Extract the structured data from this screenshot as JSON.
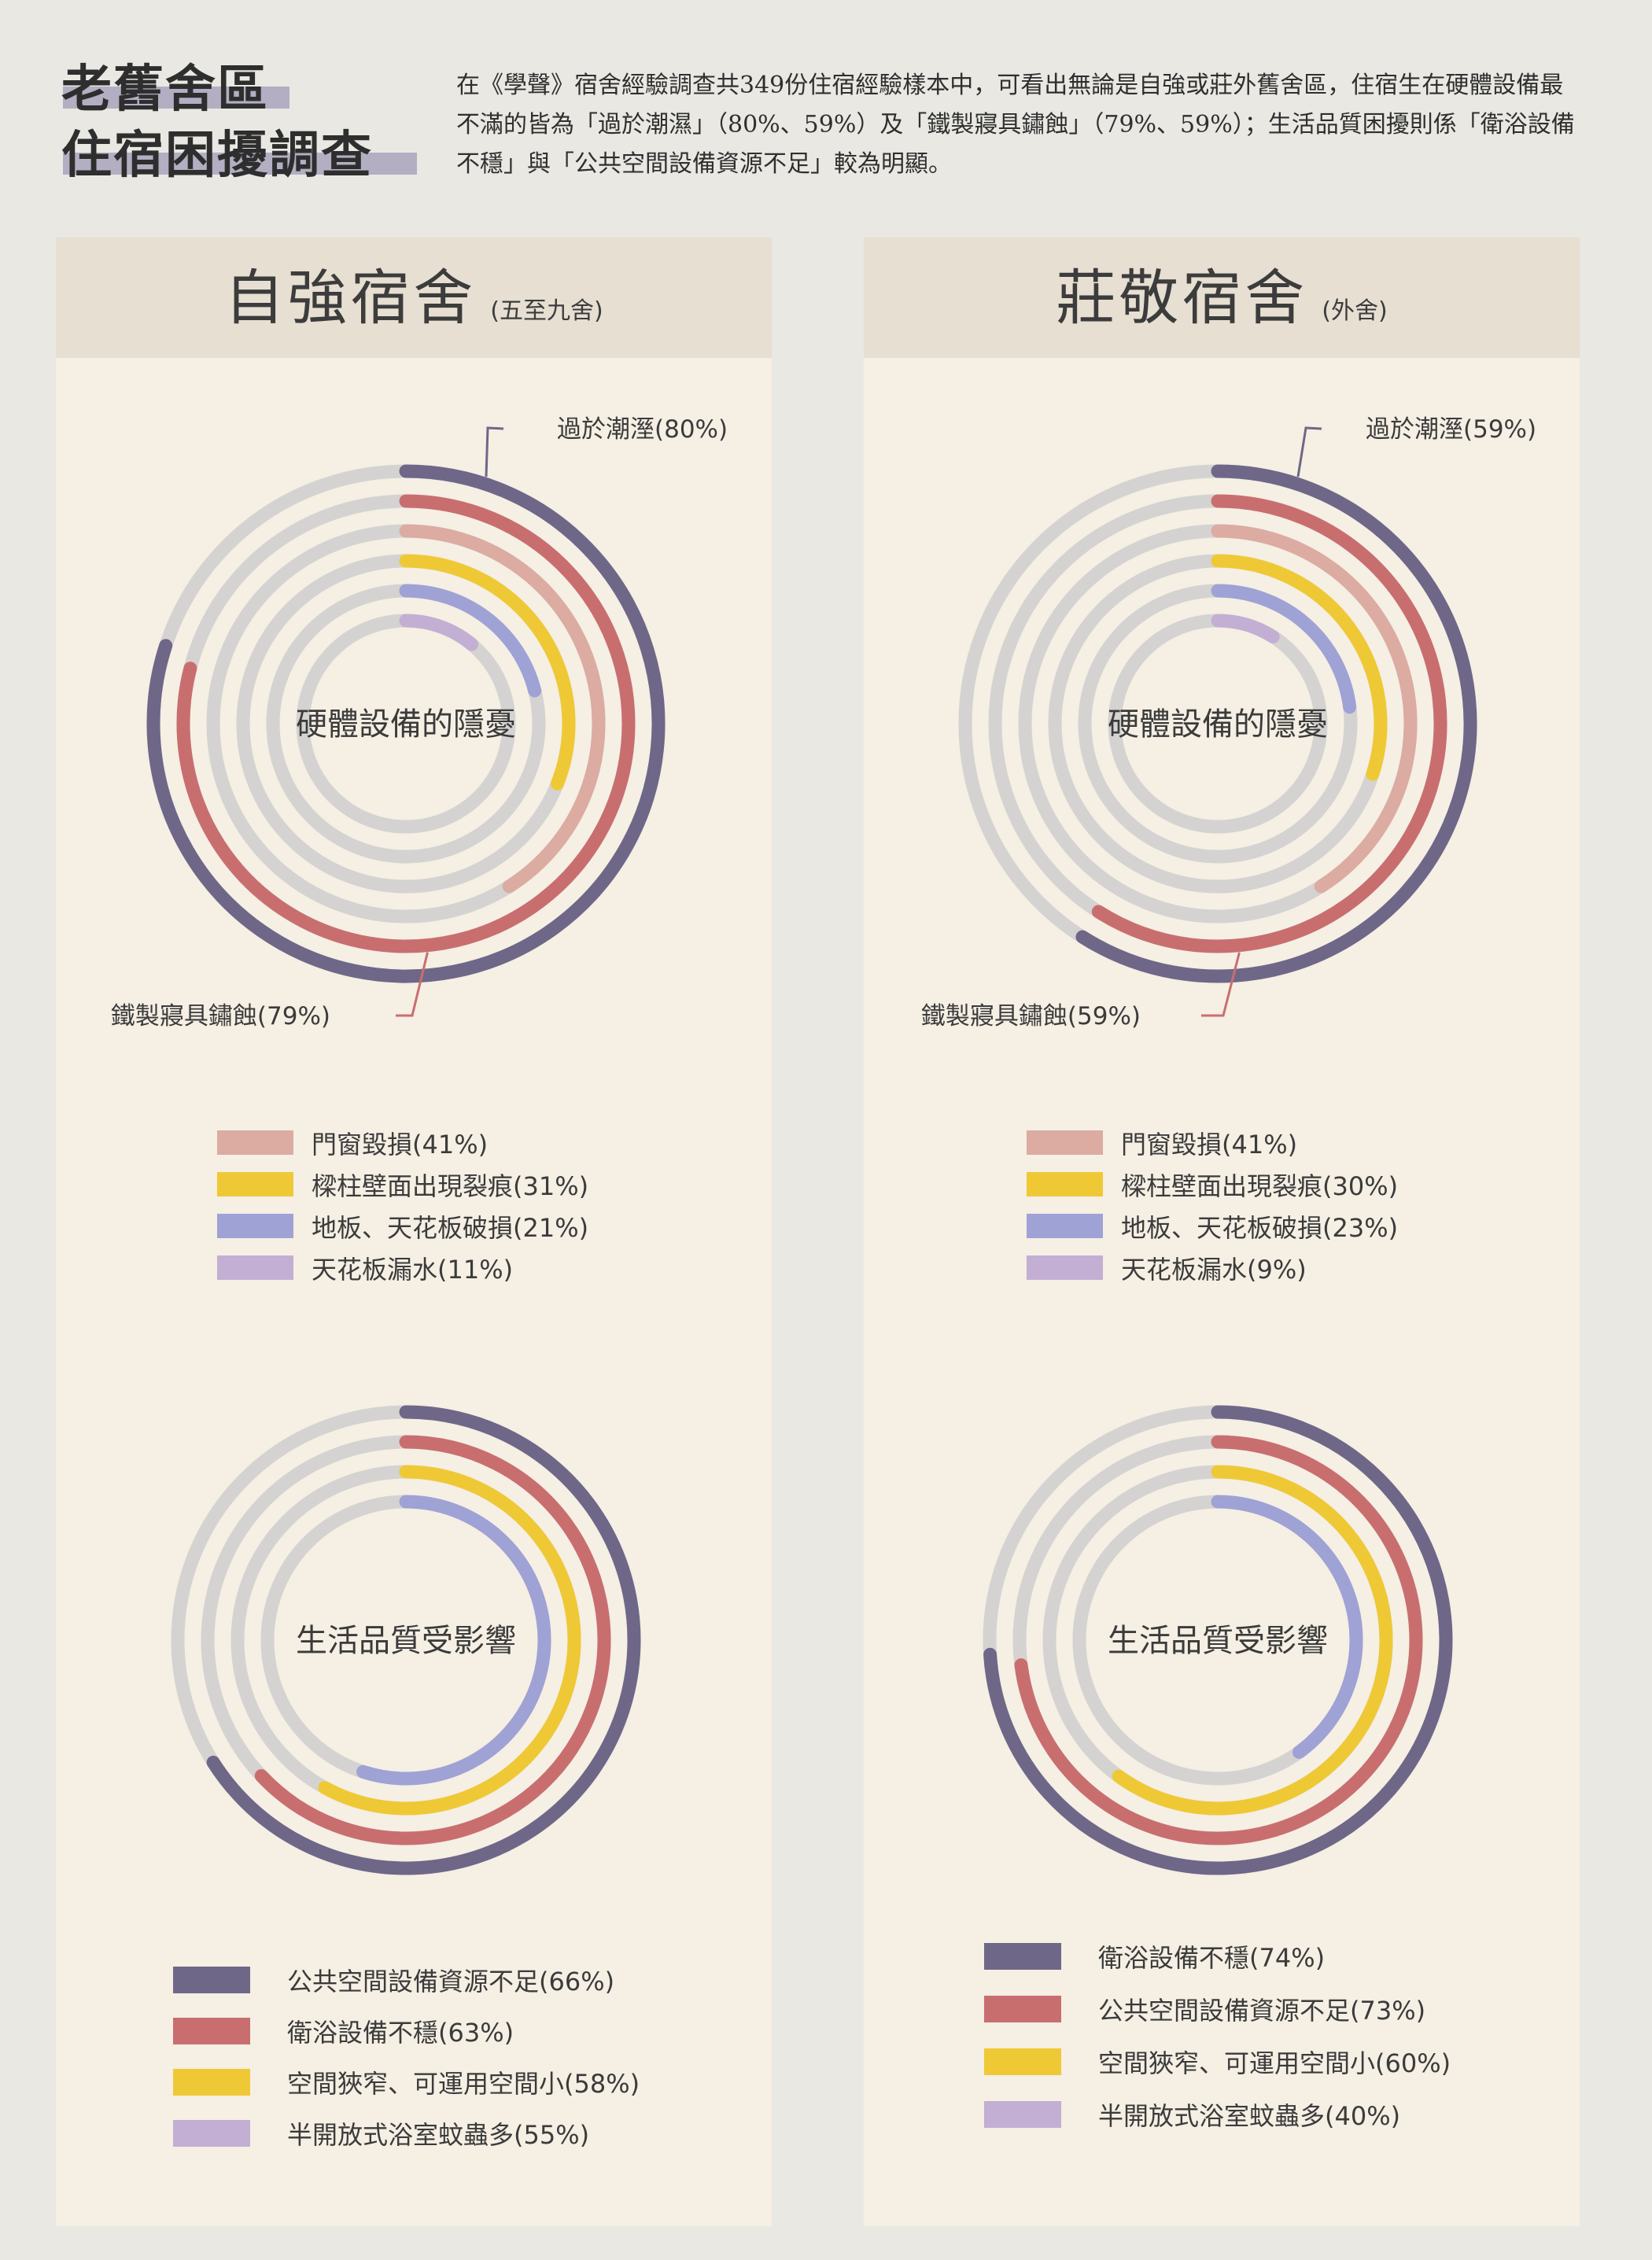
{
  "title": {
    "line1": "老舊舍區",
    "line2": "住宿困擾調查"
  },
  "intro": "在《學聲》宿舍經驗調查共349份住宿經驗樣本中，可看出無論是自強或莊外舊舍區，住宿生在硬體設備最不滿的皆為「過於潮濕」（80%、59%）及「鐵製寢具鏽蝕」（79%、59%）；生活品質困擾則係「衛浴設備不穩」與「公共空間設備資源不足」較為明顯。",
  "colors": {
    "track": "#d4d3d1",
    "purple_dark": "#6f6788",
    "red": "#c96e6f",
    "pink": "#dcaba1",
    "yellow": "#efc935",
    "periwinkle": "#9fa2d4",
    "lilac": "#c3afd3",
    "label_line_purple": "#6f6788",
    "label_line_red": "#c96e6f"
  },
  "panels": [
    {
      "name": "自強宿舍",
      "sub": "(五至九舍)"
    },
    {
      "name": "莊敬宿舍",
      "sub": "(外舍)"
    }
  ],
  "chart_data": [
    {
      "type": "radial-bar",
      "title": "硬體設備的隱憂",
      "panel": "自強宿舍",
      "series": [
        {
          "name": "過於潮溼",
          "value": 80,
          "label": "過於潮溼(80%)",
          "color": "#6f6788"
        },
        {
          "name": "鐵製寢具鏽蝕",
          "value": 79,
          "label": "鐵製寢具鏽蝕(79%)",
          "color": "#c96e6f"
        },
        {
          "name": "門窗毀損",
          "value": 41,
          "label": "門窗毀損(41%)",
          "color": "#dcaba1"
        },
        {
          "name": "樑柱壁面出現裂痕",
          "value": 31,
          "label": "樑柱壁面出現裂痕(31%)",
          "color": "#efc935"
        },
        {
          "name": "地板、天花板破損",
          "value": 21,
          "label": "地板、天花板破損(21%)",
          "color": "#9fa2d4"
        },
        {
          "name": "天花板漏水",
          "value": 11,
          "label": "天花板漏水(11%)",
          "color": "#c3afd3"
        }
      ],
      "legend": [
        "門窗毀損(41%)",
        "樑柱壁面出現裂痕(31%)",
        "地板、天花板破損(21%)",
        "天花板漏水(11%)"
      ]
    },
    {
      "type": "radial-bar",
      "title": "硬體設備的隱憂",
      "panel": "莊敬宿舍",
      "series": [
        {
          "name": "過於潮溼",
          "value": 59,
          "label": "過於潮溼(59%)",
          "color": "#6f6788"
        },
        {
          "name": "鐵製寢具鏽蝕",
          "value": 59,
          "label": "鐵製寢具鏽蝕(59%)",
          "color": "#c96e6f"
        },
        {
          "name": "門窗毀損",
          "value": 41,
          "label": "門窗毀損(41%)",
          "color": "#dcaba1"
        },
        {
          "name": "樑柱壁面出現裂痕",
          "value": 30,
          "label": "樑柱壁面出現裂痕(30%)",
          "color": "#efc935"
        },
        {
          "name": "地板、天花板破損",
          "value": 23,
          "label": "地板、天花板破損(23%)",
          "color": "#9fa2d4"
        },
        {
          "name": "天花板漏水",
          "value": 9,
          "label": "天花板漏水(9%)",
          "color": "#c3afd3"
        }
      ],
      "legend": [
        "門窗毀損(41%)",
        "樑柱壁面出現裂痕(30%)",
        "地板、天花板破損(23%)",
        "天花板漏水(9%)"
      ]
    },
    {
      "type": "radial-bar",
      "title": "生活品質受影響",
      "panel": "自強宿舍",
      "series": [
        {
          "name": "公共空間設備資源不足",
          "value": 66,
          "label": "公共空間設備資源不足(66%)",
          "color": "#6f6788"
        },
        {
          "name": "衛浴設備不穩",
          "value": 63,
          "label": "衛浴設備不穩(63%)",
          "color": "#c96e6f"
        },
        {
          "name": "空間狹窄、可運用空間小",
          "value": 58,
          "label": "空間狹窄、可運用空間小(58%)",
          "color": "#efc935"
        },
        {
          "name": "半開放式浴室蚊蟲多",
          "value": 55,
          "label": "半開放式浴室蚊蟲多(55%)",
          "color": "#9fa2d4",
          "legend_color": "#c3afd3"
        }
      ],
      "legend": [
        "公共空間設備資源不足(66%)",
        "衛浴設備不穩(63%)",
        "空間狹窄、可運用空間小(58%)",
        "半開放式浴室蚊蟲多(55%)"
      ]
    },
    {
      "type": "radial-bar",
      "title": "生活品質受影響",
      "panel": "莊敬宿舍",
      "series": [
        {
          "name": "衛浴設備不穩",
          "value": 74,
          "label": "衛浴設備不穩(74%)",
          "color": "#6f6788"
        },
        {
          "name": "公共空間設備資源不足",
          "value": 73,
          "label": "公共空間設備資源不足(73%)",
          "color": "#c96e6f"
        },
        {
          "name": "空間狹窄、可運用空間小",
          "value": 60,
          "label": "空間狹窄、可運用空間小(60%)",
          "color": "#efc935"
        },
        {
          "name": "半開放式浴室蚊蟲多",
          "value": 40,
          "label": "半開放式浴室蚊蟲多(40%)",
          "color": "#9fa2d4",
          "legend_color": "#c3afd3"
        }
      ],
      "legend": [
        "衛浴設備不穩(74%)",
        "公共空間設備資源不足(73%)",
        "空間狹窄、可運用空間小(60%)",
        "半開放式浴室蚊蟲多(40%)"
      ]
    }
  ]
}
